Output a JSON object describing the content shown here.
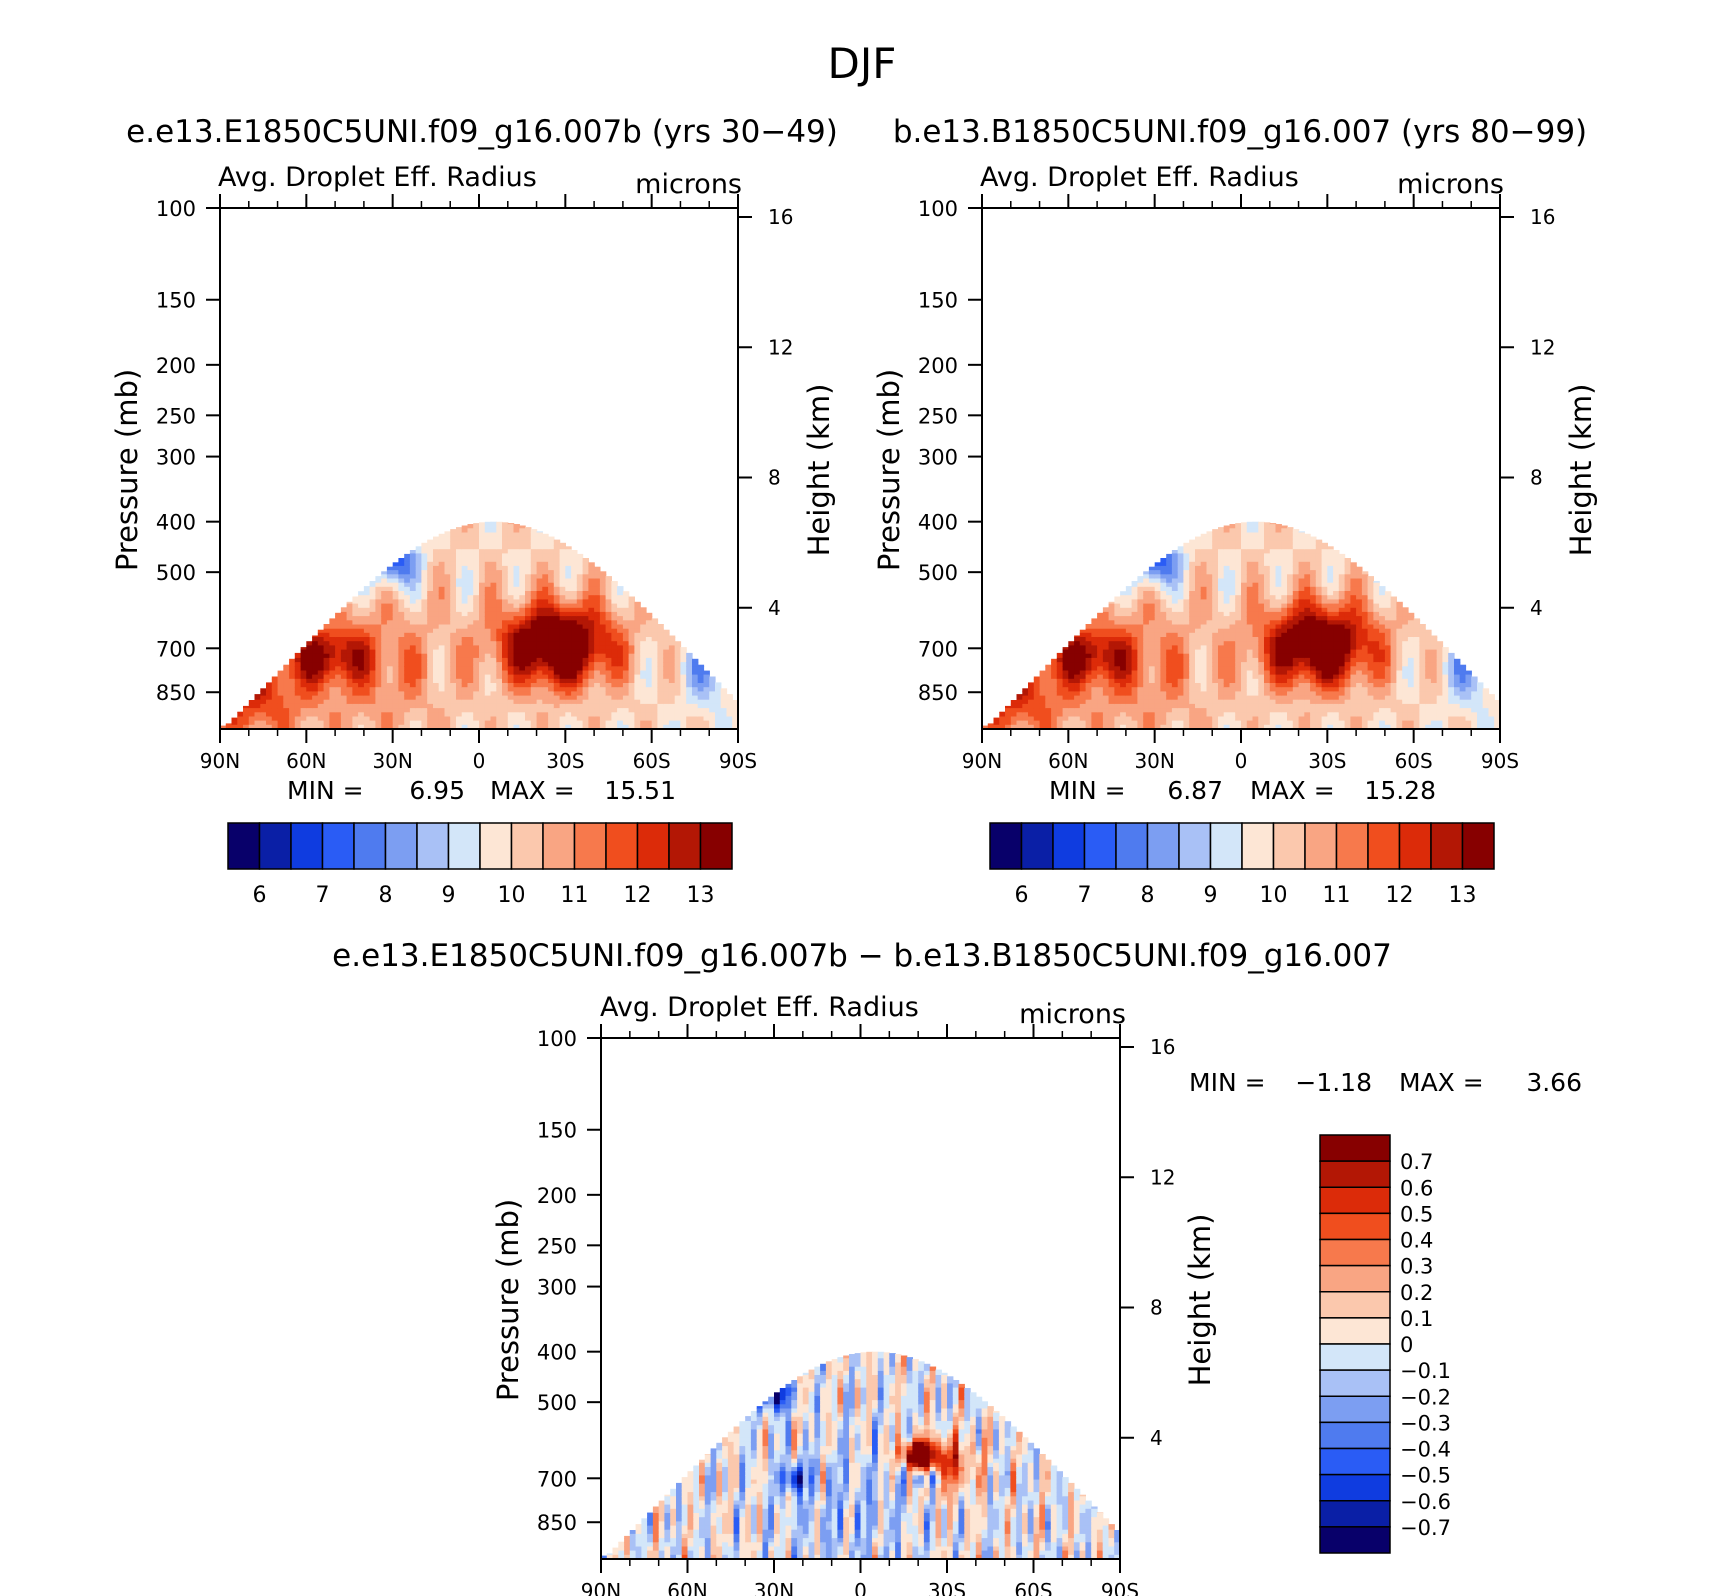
{
  "title": "DJF",
  "panels": [
    {
      "heading": "e.e13.E1850C5UNI.f09_g16.007b (yrs 30−49)",
      "variable": "Avg. Droplet Eff. Radius",
      "units": "microns",
      "ylabel": "Pressure (mb)",
      "ylabel_right": "Height (km)",
      "min_label": "MIN =",
      "min_value": "6.95",
      "max_label": "MAX =",
      "max_value": "15.51"
    },
    {
      "heading": "b.e13.B1850C5UNI.f09_g16.007 (yrs 80−99)",
      "variable": "Avg. Droplet Eff. Radius",
      "units": "microns",
      "ylabel": "Pressure (mb)",
      "ylabel_right": "Height (km)",
      "min_label": "MIN =",
      "min_value": "6.87",
      "max_label": "MAX =",
      "max_value": "15.28"
    },
    {
      "heading": "e.e13.E1850C5UNI.f09_g16.007b − b.e13.B1850C5UNI.f09_g16.007",
      "variable": "Avg. Droplet Eff. Radius",
      "units": "microns",
      "ylabel": "Pressure (mb)",
      "ylabel_right": "Height (km)",
      "min_label": "MIN =",
      "min_value": "−1.18",
      "max_label": "MAX =",
      "max_value": "3.66"
    }
  ],
  "chart_data": [
    {
      "type": "heatmap",
      "title": "Avg. Droplet Eff. Radius",
      "units": "microns",
      "x_ticks": [
        "90N",
        "60N",
        "30N",
        "0",
        "30S",
        "60S",
        "90S"
      ],
      "y_ticks_pressure": [
        100,
        150,
        200,
        250,
        300,
        400,
        500,
        700,
        850
      ],
      "y_ticks_height_km": [
        16,
        12,
        8,
        4
      ],
      "ylim_pressure": [
        100,
        1000
      ],
      "ylim_height_km": [
        0,
        16
      ],
      "y_scale": "log-pressure",
      "min": 6.95,
      "max": 15.51,
      "colorbar_levels": [
        6,
        7,
        8,
        9,
        10,
        11,
        12,
        13
      ],
      "colorbar_colors": [
        "#08006a",
        "#0a1fa6",
        "#0f3ce0",
        "#2a5cf5",
        "#4f7bef",
        "#7c9ef2",
        "#a9c1f6",
        "#d3e6f9",
        "#fde6d5",
        "#fbc8ad",
        "#f9a583",
        "#f7794c",
        "#f04e1e",
        "#dc2b09",
        "#b31705",
        "#870000"
      ],
      "colorbar_orientation": "horizontal"
    },
    {
      "type": "heatmap",
      "title": "Avg. Droplet Eff. Radius",
      "units": "microns",
      "x_ticks": [
        "90N",
        "60N",
        "30N",
        "0",
        "30S",
        "60S",
        "90S"
      ],
      "y_ticks_pressure": [
        100,
        150,
        200,
        250,
        300,
        400,
        500,
        700,
        850
      ],
      "y_ticks_height_km": [
        16,
        12,
        8,
        4
      ],
      "ylim_pressure": [
        100,
        1000
      ],
      "ylim_height_km": [
        0,
        16
      ],
      "y_scale": "log-pressure",
      "min": 6.87,
      "max": 15.28,
      "colorbar_levels": [
        6,
        7,
        8,
        9,
        10,
        11,
        12,
        13
      ],
      "colorbar_colors": [
        "#08006a",
        "#0a1fa6",
        "#0f3ce0",
        "#2a5cf5",
        "#4f7bef",
        "#7c9ef2",
        "#a9c1f6",
        "#d3e6f9",
        "#fde6d5",
        "#fbc8ad",
        "#f9a583",
        "#f7794c",
        "#f04e1e",
        "#dc2b09",
        "#b31705",
        "#870000"
      ],
      "colorbar_orientation": "horizontal"
    },
    {
      "type": "heatmap",
      "title": "Avg. Droplet Eff. Radius",
      "units": "microns",
      "x_ticks": [
        "90N",
        "60N",
        "30N",
        "0",
        "30S",
        "60S",
        "90S"
      ],
      "y_ticks_pressure": [
        100,
        150,
        200,
        250,
        300,
        400,
        500,
        700,
        850
      ],
      "y_ticks_height_km": [
        16,
        12,
        8,
        4
      ],
      "ylim_pressure": [
        100,
        1000
      ],
      "ylim_height_km": [
        0,
        16
      ],
      "y_scale": "log-pressure",
      "min": -1.18,
      "max": 3.66,
      "colorbar_levels": [
        "0.7",
        "0.6",
        "0.5",
        "0.4",
        "0.3",
        "0.2",
        "0.1",
        "0",
        "−0.1",
        "−0.2",
        "−0.3",
        "−0.4",
        "−0.5",
        "−0.6",
        "−0.7"
      ],
      "colorbar_colors": [
        "#870000",
        "#b31705",
        "#dc2b09",
        "#f04e1e",
        "#f7794c",
        "#f9a583",
        "#fbc8ad",
        "#fde6d5",
        "#d3e6f9",
        "#a9c1f6",
        "#7c9ef2",
        "#4f7bef",
        "#2a5cf5",
        "#0f3ce0",
        "#0a1fa6",
        "#08006a"
      ],
      "colorbar_orientation": "vertical"
    }
  ]
}
